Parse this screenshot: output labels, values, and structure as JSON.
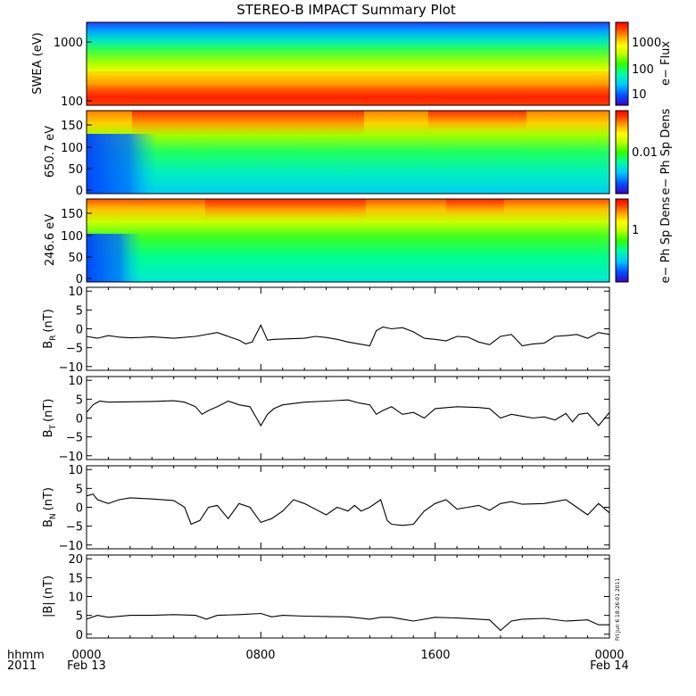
{
  "title": "STEREO-B IMPACT Summary Plot",
  "footer": {
    "x_axis_label": "hhmm",
    "year": "2011",
    "start_date": "Feb 13",
    "end_date": "Feb 14",
    "time_ticks": [
      "0000",
      "0800",
      "1600",
      "0000"
    ],
    "stamp": "Fri Jun 6 18:26:01 2011"
  },
  "colors": {
    "frame": "#000000",
    "line": "#000000",
    "scale": [
      "#3c00c0",
      "#0050ff",
      "#00c8ff",
      "#00ffa0",
      "#30ff00",
      "#c0ff00",
      "#ffff00",
      "#ffa000",
      "#ff4000",
      "#ff0000"
    ]
  },
  "chart_data": [
    {
      "type": "heatmap",
      "ylabel": "SWEA (eV)",
      "yscale": "log",
      "ylim": [
        100,
        2000
      ],
      "yticks": [
        "1000",
        "100"
      ],
      "colorbar_label": "e− Flux",
      "colorbar_ticks": [
        "1000",
        "100",
        "10"
      ]
    },
    {
      "type": "heatmap",
      "ylabel": "650.7 eV",
      "ylim": [
        0,
        180
      ],
      "yticks": [
        "150",
        "100",
        "50",
        "0"
      ],
      "colorbar_label": "e− Ph Sp Dens",
      "colorbar_ticks": [
        "0.01"
      ]
    },
    {
      "type": "heatmap",
      "ylabel": "246.6 eV",
      "ylim": [
        0,
        180
      ],
      "yticks": [
        "150",
        "100",
        "50",
        "0"
      ],
      "colorbar_label": "e− Ph Sp Dens",
      "colorbar_ticks": [
        "1"
      ]
    },
    {
      "type": "line",
      "ylabel_main": "B",
      "ylabel_sub": "R",
      "ylabel_unit": "(nT)",
      "ylim": [
        -11,
        11
      ],
      "yticks": [
        "10",
        "5",
        "0",
        "−5",
        "−10"
      ],
      "x_hours": [
        0,
        0.5,
        1,
        1.5,
        2,
        2.5,
        3,
        4,
        5,
        6,
        6.5,
        7,
        7.3,
        7.6,
        8,
        8.3,
        8.6,
        9,
        10,
        10.5,
        11,
        11.5,
        12,
        12.5,
        13,
        13.3,
        13.6,
        14,
        14.5,
        15,
        15.5,
        16,
        16.5,
        17,
        17.5,
        18,
        18.5,
        19,
        19.5,
        20,
        20.5,
        21,
        21.5,
        22,
        22.5,
        23,
        23.5,
        24
      ],
      "y": [
        -2,
        -2.5,
        -1.8,
        -2.2,
        -2.4,
        -2.3,
        -2.1,
        -2.5,
        -2,
        -1,
        -2,
        -3,
        -4,
        -3.5,
        1,
        -3,
        -2.8,
        -2.7,
        -2.5,
        -2,
        -2.3,
        -2.8,
        -3.5,
        -4,
        -4.5,
        -0.5,
        0.5,
        0,
        0.3,
        -0.8,
        -2.5,
        -2.8,
        -3.2,
        -2,
        -2.2,
        -3.5,
        -4.2,
        -2,
        -1.5,
        -4.5,
        -4,
        -3.8,
        -2,
        -1.8,
        -1.5,
        -2.5,
        -1,
        -1.5
      ]
    },
    {
      "type": "line",
      "ylabel_main": "B",
      "ylabel_sub": "T",
      "ylabel_unit": "(nT)",
      "ylim": [
        -11,
        11
      ],
      "yticks": [
        "10",
        "5",
        "0",
        "−5",
        "−10"
      ],
      "x_hours": [
        0,
        0.3,
        0.6,
        1,
        2,
        3,
        4,
        4.5,
        5,
        5.3,
        5.6,
        6,
        6.5,
        7,
        7.5,
        7.8,
        8,
        8.3,
        8.6,
        9,
        10,
        11,
        12,
        12.5,
        13,
        13.3,
        13.6,
        14,
        14.5,
        15,
        15.5,
        16,
        17,
        18,
        18.5,
        19,
        19.5,
        20,
        20.5,
        21,
        21.5,
        22,
        22.3,
        22.6,
        23,
        23.5,
        24
      ],
      "y": [
        1.5,
        3.5,
        4.5,
        4.2,
        4.3,
        4.4,
        4.6,
        4.2,
        3,
        1,
        2,
        3,
        4.5,
        3.5,
        3,
        0,
        -2,
        1,
        2.5,
        3.5,
        4.2,
        4.5,
        4.8,
        4,
        3.5,
        1,
        2,
        3,
        1,
        1.5,
        0,
        2.5,
        3,
        2.8,
        2.5,
        0,
        1,
        0.5,
        0,
        0.3,
        -0.5,
        1.2,
        -1,
        1,
        1.3,
        -2,
        1.5
      ]
    },
    {
      "type": "line",
      "ylabel_main": "B",
      "ylabel_sub": "N",
      "ylabel_unit": "(nT)",
      "ylim": [
        -11,
        11
      ],
      "yticks": [
        "10",
        "5",
        "0",
        "−5",
        "−10"
      ],
      "x_hours": [
        0,
        0.3,
        0.5,
        1,
        1.5,
        2,
        3,
        4,
        4.5,
        4.8,
        5.2,
        5.6,
        6,
        6.5,
        7,
        7.5,
        8,
        8.5,
        9,
        9.5,
        10,
        11,
        11.5,
        12,
        12.3,
        12.6,
        13,
        13.5,
        13.8,
        14,
        14.5,
        15,
        15.5,
        16,
        16.5,
        17,
        17.5,
        18,
        18.5,
        19,
        19.5,
        20,
        21,
        21.5,
        22,
        22.5,
        23,
        23.5,
        24
      ],
      "y": [
        3,
        3.5,
        2,
        1,
        2,
        2.5,
        2.2,
        1.8,
        0,
        -4.5,
        -3.5,
        0,
        0.5,
        -3,
        1,
        0,
        -4,
        -3,
        -1,
        2,
        1,
        -2,
        0,
        -1,
        0.5,
        -1,
        0,
        2,
        -3.5,
        -4.5,
        -4.8,
        -4.5,
        -1,
        1,
        2,
        -0.5,
        0,
        0.5,
        -0.8,
        1,
        1.5,
        0.8,
        1,
        1.5,
        2,
        0,
        -2,
        1,
        -1.5
      ]
    },
    {
      "type": "line",
      "ylabel_main": "|B|",
      "ylabel_sub": "",
      "ylabel_unit": "(nT)",
      "ylim": [
        -1,
        21
      ],
      "yticks": [
        "20",
        "15",
        "10",
        "5",
        "0"
      ],
      "x_hours": [
        0,
        0.5,
        1,
        2,
        3,
        4,
        5,
        5.5,
        6,
        7,
        8,
        8.5,
        9,
        10,
        11,
        12,
        12.5,
        13,
        13.5,
        14,
        14.5,
        15,
        16,
        17,
        18,
        18.5,
        19,
        19.5,
        20,
        21,
        22,
        23,
        23.5,
        24
      ],
      "y": [
        4,
        5,
        4.5,
        5,
        5,
        5.2,
        5,
        4,
        5,
        5.2,
        5.5,
        4.6,
        5,
        4.8,
        4.7,
        4.6,
        4.3,
        4,
        4.5,
        4.5,
        4,
        3.5,
        4.5,
        4.3,
        4,
        3.8,
        1,
        3.5,
        4,
        4.2,
        3.5,
        3.8,
        2.5,
        2.5
      ]
    }
  ]
}
